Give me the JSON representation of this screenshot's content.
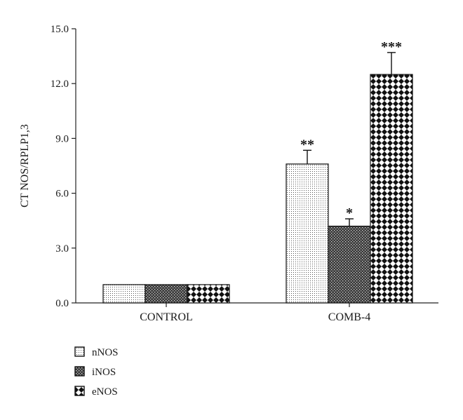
{
  "chart_data": {
    "type": "bar",
    "ylabel": "CT NOS/RPLP1,3",
    "xlabel": "",
    "ylim": [
      0,
      15
    ],
    "yticks": [
      "0.0",
      "3.0",
      "6.0",
      "9.0",
      "12.0",
      "15.0"
    ],
    "grid": false,
    "legend_position": "bottom-left",
    "categories": [
      "CONTROL",
      "COMB-4"
    ],
    "series": [
      {
        "name": "nNOS",
        "values": [
          1.0,
          7.6
        ],
        "errors": [
          0,
          0.75
        ],
        "significance": [
          "",
          "**"
        ],
        "pattern": "dots"
      },
      {
        "name": "iNOS",
        "values": [
          1.0,
          4.2
        ],
        "errors": [
          0,
          0.4
        ],
        "significance": [
          "",
          "*"
        ],
        "pattern": "dense-grid"
      },
      {
        "name": "eNOS",
        "values": [
          1.0,
          12.5
        ],
        "errors": [
          0,
          1.2
        ],
        "significance": [
          "",
          "***"
        ],
        "pattern": "diamonds"
      }
    ]
  }
}
